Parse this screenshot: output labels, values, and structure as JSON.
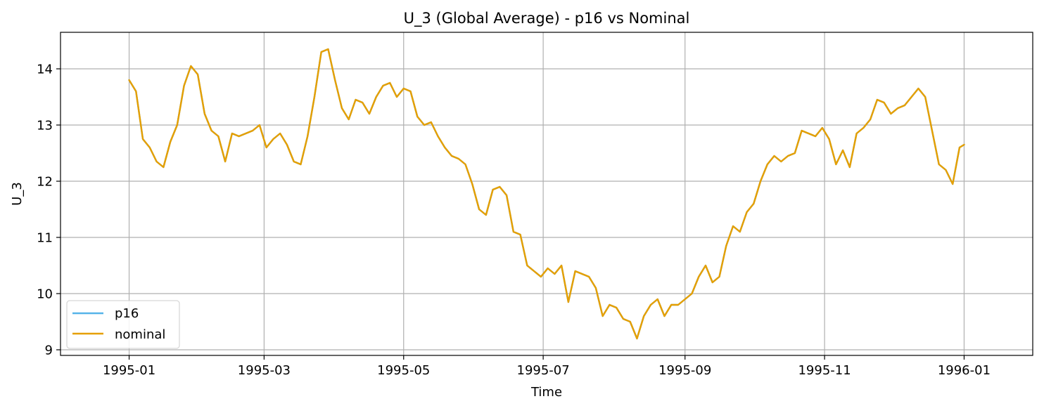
{
  "chart_data": {
    "type": "line",
    "title": "U_3 (Global Average) - p16 vs Nominal",
    "xlabel": "Time",
    "ylabel": "U_3",
    "xlim": [
      -30,
      395
    ],
    "ylim": [
      8.9,
      14.65
    ],
    "grid": true,
    "legend_position": "lower-left",
    "x_ticks": [
      {
        "value": 0,
        "label": "1995-01"
      },
      {
        "value": 59,
        "label": "1995-03"
      },
      {
        "value": 120,
        "label": "1995-05"
      },
      {
        "value": 181,
        "label": "1995-07"
      },
      {
        "value": 243,
        "label": "1995-09"
      },
      {
        "value": 304,
        "label": "1995-11"
      },
      {
        "value": 365,
        "label": "1996-01"
      }
    ],
    "y_ticks": [
      {
        "value": 9,
        "label": "9"
      },
      {
        "value": 10,
        "label": "10"
      },
      {
        "value": 11,
        "label": "11"
      },
      {
        "value": 12,
        "label": "12"
      },
      {
        "value": 13,
        "label": "13"
      },
      {
        "value": 14,
        "label": "14"
      }
    ],
    "x_unit": "day of year 1995",
    "x": [
      0,
      3,
      6,
      9,
      12,
      15,
      18,
      21,
      24,
      27,
      30,
      33,
      36,
      39,
      42,
      45,
      48,
      51,
      54,
      57,
      60,
      63,
      66,
      69,
      72,
      75,
      78,
      81,
      84,
      87,
      90,
      93,
      96,
      99,
      102,
      105,
      108,
      111,
      114,
      117,
      120,
      123,
      126,
      129,
      132,
      135,
      138,
      141,
      144,
      147,
      150,
      153,
      156,
      159,
      162,
      165,
      168,
      171,
      174,
      177,
      180,
      183,
      186,
      189,
      192,
      195,
      198,
      201,
      204,
      207,
      210,
      213,
      216,
      219,
      222,
      225,
      228,
      231,
      234,
      237,
      240,
      243,
      246,
      249,
      252,
      255,
      258,
      261,
      264,
      267,
      270,
      273,
      276,
      279,
      282,
      285,
      288,
      291,
      294,
      297,
      300,
      303,
      306,
      309,
      312,
      315,
      318,
      321,
      324,
      327,
      330,
      333,
      336,
      339,
      342,
      345,
      348,
      351,
      354,
      357,
      360,
      363,
      365
    ],
    "series": [
      {
        "name": "p16",
        "color": "#56b4e9",
        "values": [
          13.8,
          13.6,
          12.75,
          12.6,
          12.35,
          12.25,
          12.7,
          13.0,
          13.7,
          14.05,
          13.9,
          13.2,
          12.9,
          12.8,
          12.35,
          12.85,
          12.8,
          12.85,
          12.9,
          13.0,
          12.6,
          12.75,
          12.85,
          12.65,
          12.35,
          12.3,
          12.8,
          13.5,
          14.3,
          14.35,
          13.8,
          13.3,
          13.1,
          13.45,
          13.4,
          13.2,
          13.5,
          13.7,
          13.75,
          13.5,
          13.65,
          13.6,
          13.15,
          13.0,
          13.05,
          12.8,
          12.6,
          12.45,
          12.4,
          12.3,
          11.95,
          11.5,
          11.4,
          11.85,
          11.9,
          11.75,
          11.1,
          11.05,
          10.5,
          10.4,
          10.3,
          10.45,
          10.35,
          10.5,
          9.85,
          10.4,
          10.35,
          10.3,
          10.1,
          9.6,
          9.8,
          9.75,
          9.55,
          9.5,
          9.2,
          9.6,
          9.8,
          9.9,
          9.6,
          9.8,
          9.8,
          9.9,
          10.0,
          10.3,
          10.5,
          10.2,
          10.3,
          10.85,
          11.2,
          11.1,
          11.45,
          11.6,
          12.0,
          12.3,
          12.45,
          12.35,
          12.45,
          12.5,
          12.9,
          12.85,
          12.8,
          12.95,
          12.75,
          12.3,
          12.55,
          12.25,
          12.85,
          12.95,
          13.1,
          13.45,
          13.4,
          13.2,
          13.3,
          13.35,
          13.5,
          13.65,
          13.5,
          12.9,
          12.3,
          12.2,
          11.95,
          12.6,
          12.65
        ]
      },
      {
        "name": "nominal",
        "color": "#e69f00",
        "values": [
          13.8,
          13.6,
          12.75,
          12.6,
          12.35,
          12.25,
          12.7,
          13.0,
          13.7,
          14.05,
          13.9,
          13.2,
          12.9,
          12.8,
          12.35,
          12.85,
          12.8,
          12.85,
          12.9,
          13.0,
          12.6,
          12.75,
          12.85,
          12.65,
          12.35,
          12.3,
          12.8,
          13.5,
          14.3,
          14.35,
          13.8,
          13.3,
          13.1,
          13.45,
          13.4,
          13.2,
          13.5,
          13.7,
          13.75,
          13.5,
          13.65,
          13.6,
          13.15,
          13.0,
          13.05,
          12.8,
          12.6,
          12.45,
          12.4,
          12.3,
          11.95,
          11.5,
          11.4,
          11.85,
          11.9,
          11.75,
          11.1,
          11.05,
          10.5,
          10.4,
          10.3,
          10.45,
          10.35,
          10.5,
          9.85,
          10.4,
          10.35,
          10.3,
          10.1,
          9.6,
          9.8,
          9.75,
          9.55,
          9.5,
          9.2,
          9.6,
          9.8,
          9.9,
          9.6,
          9.8,
          9.8,
          9.9,
          10.0,
          10.3,
          10.5,
          10.2,
          10.3,
          10.85,
          11.2,
          11.1,
          11.45,
          11.6,
          12.0,
          12.3,
          12.45,
          12.35,
          12.45,
          12.5,
          12.9,
          12.85,
          12.8,
          12.95,
          12.75,
          12.3,
          12.55,
          12.25,
          12.85,
          12.95,
          13.1,
          13.45,
          13.4,
          13.2,
          13.3,
          13.35,
          13.5,
          13.65,
          13.5,
          12.9,
          12.3,
          12.2,
          11.95,
          12.6,
          12.65
        ]
      }
    ]
  }
}
